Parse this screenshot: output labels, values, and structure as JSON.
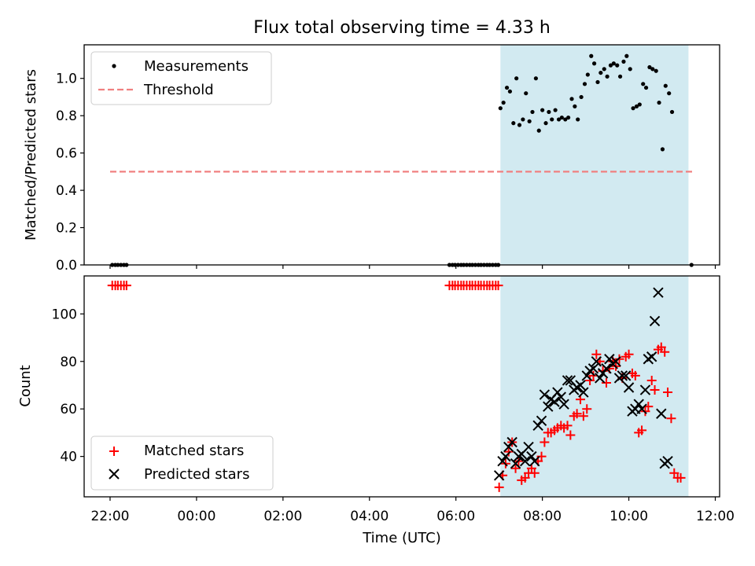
{
  "figure": {
    "title": "Flux total observing time = 4.33 h",
    "xlabel": "Time (UTC)"
  },
  "colors": {
    "measurements": "#000000",
    "threshold": "#f08080",
    "matched": "#ff0000",
    "predicted": "#000000",
    "window": "#add8e6"
  },
  "chart_data": [
    {
      "type": "scatter",
      "panel": "top",
      "ylabel": "Matched/Predicted stars",
      "xlim": [
        -2.6,
        12.1
      ],
      "ylim": [
        0,
        1.18
      ],
      "y_ticks": [
        0.0,
        0.2,
        0.4,
        0.6,
        0.8,
        1.0
      ],
      "y_tick_labels": [
        "0.0",
        "0.2",
        "0.4",
        "0.6",
        "0.8",
        "1.0"
      ],
      "x_ticks": [
        -2,
        0,
        2,
        4,
        6,
        8,
        10,
        12
      ],
      "observing_window": [
        7.03,
        11.38
      ],
      "legend": {
        "placement": "upper-left",
        "entries": [
          "Measurements",
          "Threshold"
        ]
      },
      "threshold": {
        "name": "Threshold",
        "value": 0.5,
        "x_range": [
          -2.0,
          11.5
        ]
      },
      "series": [
        {
          "name": "Measurements",
          "marker": "dot",
          "points": [
            [
              -1.95,
              0
            ],
            [
              -1.88,
              0
            ],
            [
              -1.82,
              0
            ],
            [
              -1.75,
              0
            ],
            [
              -1.68,
              0
            ],
            [
              -1.62,
              0
            ],
            [
              5.85,
              0
            ],
            [
              5.92,
              0
            ],
            [
              5.98,
              0
            ],
            [
              6.05,
              0
            ],
            [
              6.12,
              0
            ],
            [
              6.18,
              0
            ],
            [
              6.25,
              0
            ],
            [
              6.32,
              0
            ],
            [
              6.38,
              0
            ],
            [
              6.45,
              0
            ],
            [
              6.52,
              0
            ],
            [
              6.58,
              0
            ],
            [
              6.65,
              0
            ],
            [
              6.72,
              0
            ],
            [
              6.78,
              0
            ],
            [
              6.85,
              0
            ],
            [
              6.92,
              0
            ],
            [
              6.98,
              0
            ],
            [
              7.03,
              0.84
            ],
            [
              7.1,
              0.87
            ],
            [
              7.18,
              0.95
            ],
            [
              7.25,
              0.93
            ],
            [
              7.33,
              0.76
            ],
            [
              7.4,
              1.0
            ],
            [
              7.47,
              0.75
            ],
            [
              7.55,
              0.78
            ],
            [
              7.62,
              0.92
            ],
            [
              7.7,
              0.77
            ],
            [
              7.77,
              0.82
            ],
            [
              7.85,
              1.0
            ],
            [
              7.92,
              0.72
            ],
            [
              8.0,
              0.83
            ],
            [
              8.08,
              0.76
            ],
            [
              8.15,
              0.82
            ],
            [
              8.22,
              0.78
            ],
            [
              8.3,
              0.83
            ],
            [
              8.38,
              0.78
            ],
            [
              8.45,
              0.79
            ],
            [
              8.53,
              0.78
            ],
            [
              8.6,
              0.79
            ],
            [
              8.68,
              0.89
            ],
            [
              8.75,
              0.85
            ],
            [
              8.82,
              0.78
            ],
            [
              8.9,
              0.9
            ],
            [
              8.98,
              0.97
            ],
            [
              9.05,
              1.02
            ],
            [
              9.13,
              1.12
            ],
            [
              9.2,
              1.08
            ],
            [
              9.28,
              0.98
            ],
            [
              9.35,
              1.03
            ],
            [
              9.43,
              1.05
            ],
            [
              9.5,
              1.01
            ],
            [
              9.58,
              1.07
            ],
            [
              9.65,
              1.08
            ],
            [
              9.73,
              1.07
            ],
            [
              9.8,
              1.01
            ],
            [
              9.88,
              1.09
            ],
            [
              9.95,
              1.12
            ],
            [
              10.03,
              1.05
            ],
            [
              10.1,
              0.84
            ],
            [
              10.18,
              0.85
            ],
            [
              10.25,
              0.86
            ],
            [
              10.33,
              0.97
            ],
            [
              10.4,
              0.95
            ],
            [
              10.48,
              1.06
            ],
            [
              10.55,
              1.05
            ],
            [
              10.63,
              1.04
            ],
            [
              10.7,
              0.87
            ],
            [
              10.78,
              0.62
            ],
            [
              10.85,
              0.96
            ],
            [
              10.93,
              0.92
            ],
            [
              11.0,
              0.82
            ],
            [
              11.45,
              0
            ]
          ]
        }
      ]
    },
    {
      "type": "scatter",
      "panel": "bottom",
      "ylabel": "Count",
      "xlim": [
        -2.6,
        12.1
      ],
      "ylim": [
        23,
        116
      ],
      "y_ticks": [
        40,
        60,
        80,
        100
      ],
      "y_tick_labels": [
        "40",
        "60",
        "80",
        "100"
      ],
      "x_ticks": [
        -2,
        0,
        2,
        4,
        6,
        8,
        10,
        12
      ],
      "x_tick_labels": [
        "22:00",
        "00:00",
        "02:00",
        "04:00",
        "06:00",
        "08:00",
        "10:00",
        "12:00"
      ],
      "observing_window": [
        7.03,
        11.38
      ],
      "legend": {
        "placement": "lower-left",
        "entries": [
          "Matched stars",
          "Predicted stars"
        ]
      },
      "series": [
        {
          "name": "Matched stars",
          "marker": "plus",
          "points": [
            [
              -1.95,
              112
            ],
            [
              -1.88,
              112
            ],
            [
              -1.82,
              112
            ],
            [
              -1.75,
              112
            ],
            [
              -1.68,
              112
            ],
            [
              -1.62,
              112
            ],
            [
              5.85,
              112
            ],
            [
              5.92,
              112
            ],
            [
              5.98,
              112
            ],
            [
              6.05,
              112
            ],
            [
              6.12,
              112
            ],
            [
              6.18,
              112
            ],
            [
              6.25,
              112
            ],
            [
              6.32,
              112
            ],
            [
              6.38,
              112
            ],
            [
              6.45,
              112
            ],
            [
              6.52,
              112
            ],
            [
              6.58,
              112
            ],
            [
              6.65,
              112
            ],
            [
              6.72,
              112
            ],
            [
              6.78,
              112
            ],
            [
              6.85,
              112
            ],
            [
              6.92,
              112
            ],
            [
              6.98,
              112
            ],
            [
              7.0,
              27
            ],
            [
              7.08,
              32
            ],
            [
              7.15,
              37
            ],
            [
              7.22,
              42
            ],
            [
              7.3,
              46
            ],
            [
              7.38,
              35
            ],
            [
              7.45,
              38
            ],
            [
              7.52,
              30
            ],
            [
              7.6,
              31
            ],
            [
              7.68,
              33
            ],
            [
              7.75,
              35
            ],
            [
              7.82,
              33
            ],
            [
              7.9,
              38
            ],
            [
              7.98,
              40
            ],
            [
              8.05,
              46
            ],
            [
              8.13,
              50
            ],
            [
              8.2,
              50
            ],
            [
              8.28,
              51
            ],
            [
              8.35,
              52
            ],
            [
              8.43,
              53
            ],
            [
              8.5,
              52
            ],
            [
              8.58,
              53
            ],
            [
              8.65,
              49
            ],
            [
              8.73,
              57
            ],
            [
              8.8,
              58
            ],
            [
              8.88,
              64
            ],
            [
              8.95,
              57
            ],
            [
              9.03,
              60
            ],
            [
              9.1,
              72
            ],
            [
              9.18,
              74
            ],
            [
              9.25,
              83
            ],
            [
              9.33,
              80
            ],
            [
              9.4,
              76
            ],
            [
              9.48,
              71
            ],
            [
              9.55,
              77
            ],
            [
              9.63,
              80
            ],
            [
              9.7,
              78
            ],
            [
              9.78,
              81
            ],
            [
              9.85,
              73
            ],
            [
              9.93,
              82
            ],
            [
              10.0,
              83
            ],
            [
              10.08,
              75
            ],
            [
              10.15,
              74
            ],
            [
              10.23,
              50
            ],
            [
              10.3,
              51
            ],
            [
              10.38,
              59
            ],
            [
              10.45,
              61
            ],
            [
              10.53,
              72
            ],
            [
              10.6,
              68
            ],
            [
              10.68,
              85
            ],
            [
              10.75,
              86
            ],
            [
              10.83,
              84
            ],
            [
              10.9,
              67
            ],
            [
              10.98,
              56
            ],
            [
              11.05,
              33
            ],
            [
              11.13,
              31
            ],
            [
              11.2,
              31
            ]
          ]
        },
        {
          "name": "Predicted stars",
          "marker": "x",
          "points": [
            [
              7.0,
              32
            ],
            [
              7.08,
              38
            ],
            [
              7.15,
              40
            ],
            [
              7.22,
              44
            ],
            [
              7.3,
              46
            ],
            [
              7.38,
              37
            ],
            [
              7.45,
              40
            ],
            [
              7.52,
              41
            ],
            [
              7.6,
              38
            ],
            [
              7.68,
              44
            ],
            [
              7.75,
              40
            ],
            [
              7.82,
              38
            ],
            [
              7.9,
              53
            ],
            [
              7.98,
              55
            ],
            [
              8.05,
              66
            ],
            [
              8.13,
              61
            ],
            [
              8.2,
              64
            ],
            [
              8.28,
              63
            ],
            [
              8.35,
              67
            ],
            [
              8.43,
              65
            ],
            [
              8.5,
              62
            ],
            [
              8.58,
              72
            ],
            [
              8.65,
              72
            ],
            [
              8.73,
              68
            ],
            [
              8.8,
              69
            ],
            [
              8.88,
              70
            ],
            [
              8.95,
              67
            ],
            [
              9.03,
              74
            ],
            [
              9.1,
              76
            ],
            [
              9.18,
              77
            ],
            [
              9.25,
              80
            ],
            [
              9.33,
              73
            ],
            [
              9.4,
              75
            ],
            [
              9.48,
              77
            ],
            [
              9.55,
              81
            ],
            [
              9.63,
              79
            ],
            [
              9.7,
              80
            ],
            [
              9.78,
              73
            ],
            [
              9.85,
              74
            ],
            [
              9.93,
              74
            ],
            [
              10.0,
              69
            ],
            [
              10.08,
              59
            ],
            [
              10.15,
              60
            ],
            [
              10.23,
              62
            ],
            [
              10.3,
              60
            ],
            [
              10.38,
              68
            ],
            [
              10.45,
              81
            ],
            [
              10.53,
              82
            ],
            [
              10.6,
              97
            ],
            [
              10.68,
              109
            ],
            [
              10.75,
              58
            ],
            [
              10.83,
              37
            ],
            [
              10.9,
              38
            ]
          ]
        }
      ]
    }
  ]
}
